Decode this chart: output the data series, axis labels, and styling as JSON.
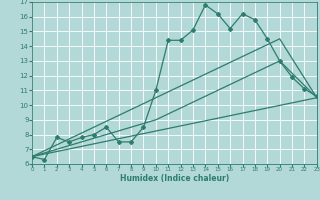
{
  "bg_color": "#b2d8d8",
  "grid_color": "#ffffff",
  "line_color": "#2e7d6e",
  "xlabel": "Humidex (Indice chaleur)",
  "xlim": [
    0,
    23
  ],
  "ylim": [
    6,
    17
  ],
  "yticks": [
    6,
    7,
    8,
    9,
    10,
    11,
    12,
    13,
    14,
    15,
    16,
    17
  ],
  "xticks": [
    0,
    1,
    2,
    3,
    4,
    5,
    6,
    7,
    8,
    9,
    10,
    11,
    12,
    13,
    14,
    15,
    16,
    17,
    18,
    19,
    20,
    21,
    22,
    23
  ],
  "line1_x": [
    0,
    1,
    2,
    3,
    4,
    5,
    6,
    7,
    8,
    9,
    10,
    11,
    12,
    13,
    14,
    15,
    16,
    17,
    18,
    19,
    20,
    21,
    22,
    23
  ],
  "line1_y": [
    6.5,
    6.3,
    7.8,
    7.5,
    7.8,
    8.0,
    8.5,
    7.5,
    7.5,
    8.5,
    11.0,
    14.4,
    14.4,
    15.1,
    16.8,
    16.2,
    15.2,
    16.2,
    15.8,
    14.5,
    13.0,
    11.9,
    11.1,
    10.6
  ],
  "line2_x": [
    0,
    10,
    20,
    23
  ],
  "line2_y": [
    6.5,
    9.0,
    13.0,
    10.5
  ],
  "line3_x": [
    0,
    23
  ],
  "line3_y": [
    6.5,
    10.5
  ],
  "line4_x": [
    0,
    20,
    23
  ],
  "line4_y": [
    6.5,
    14.5,
    10.5
  ],
  "marker": "D",
  "markersize": 2.0,
  "linewidth": 0.9
}
